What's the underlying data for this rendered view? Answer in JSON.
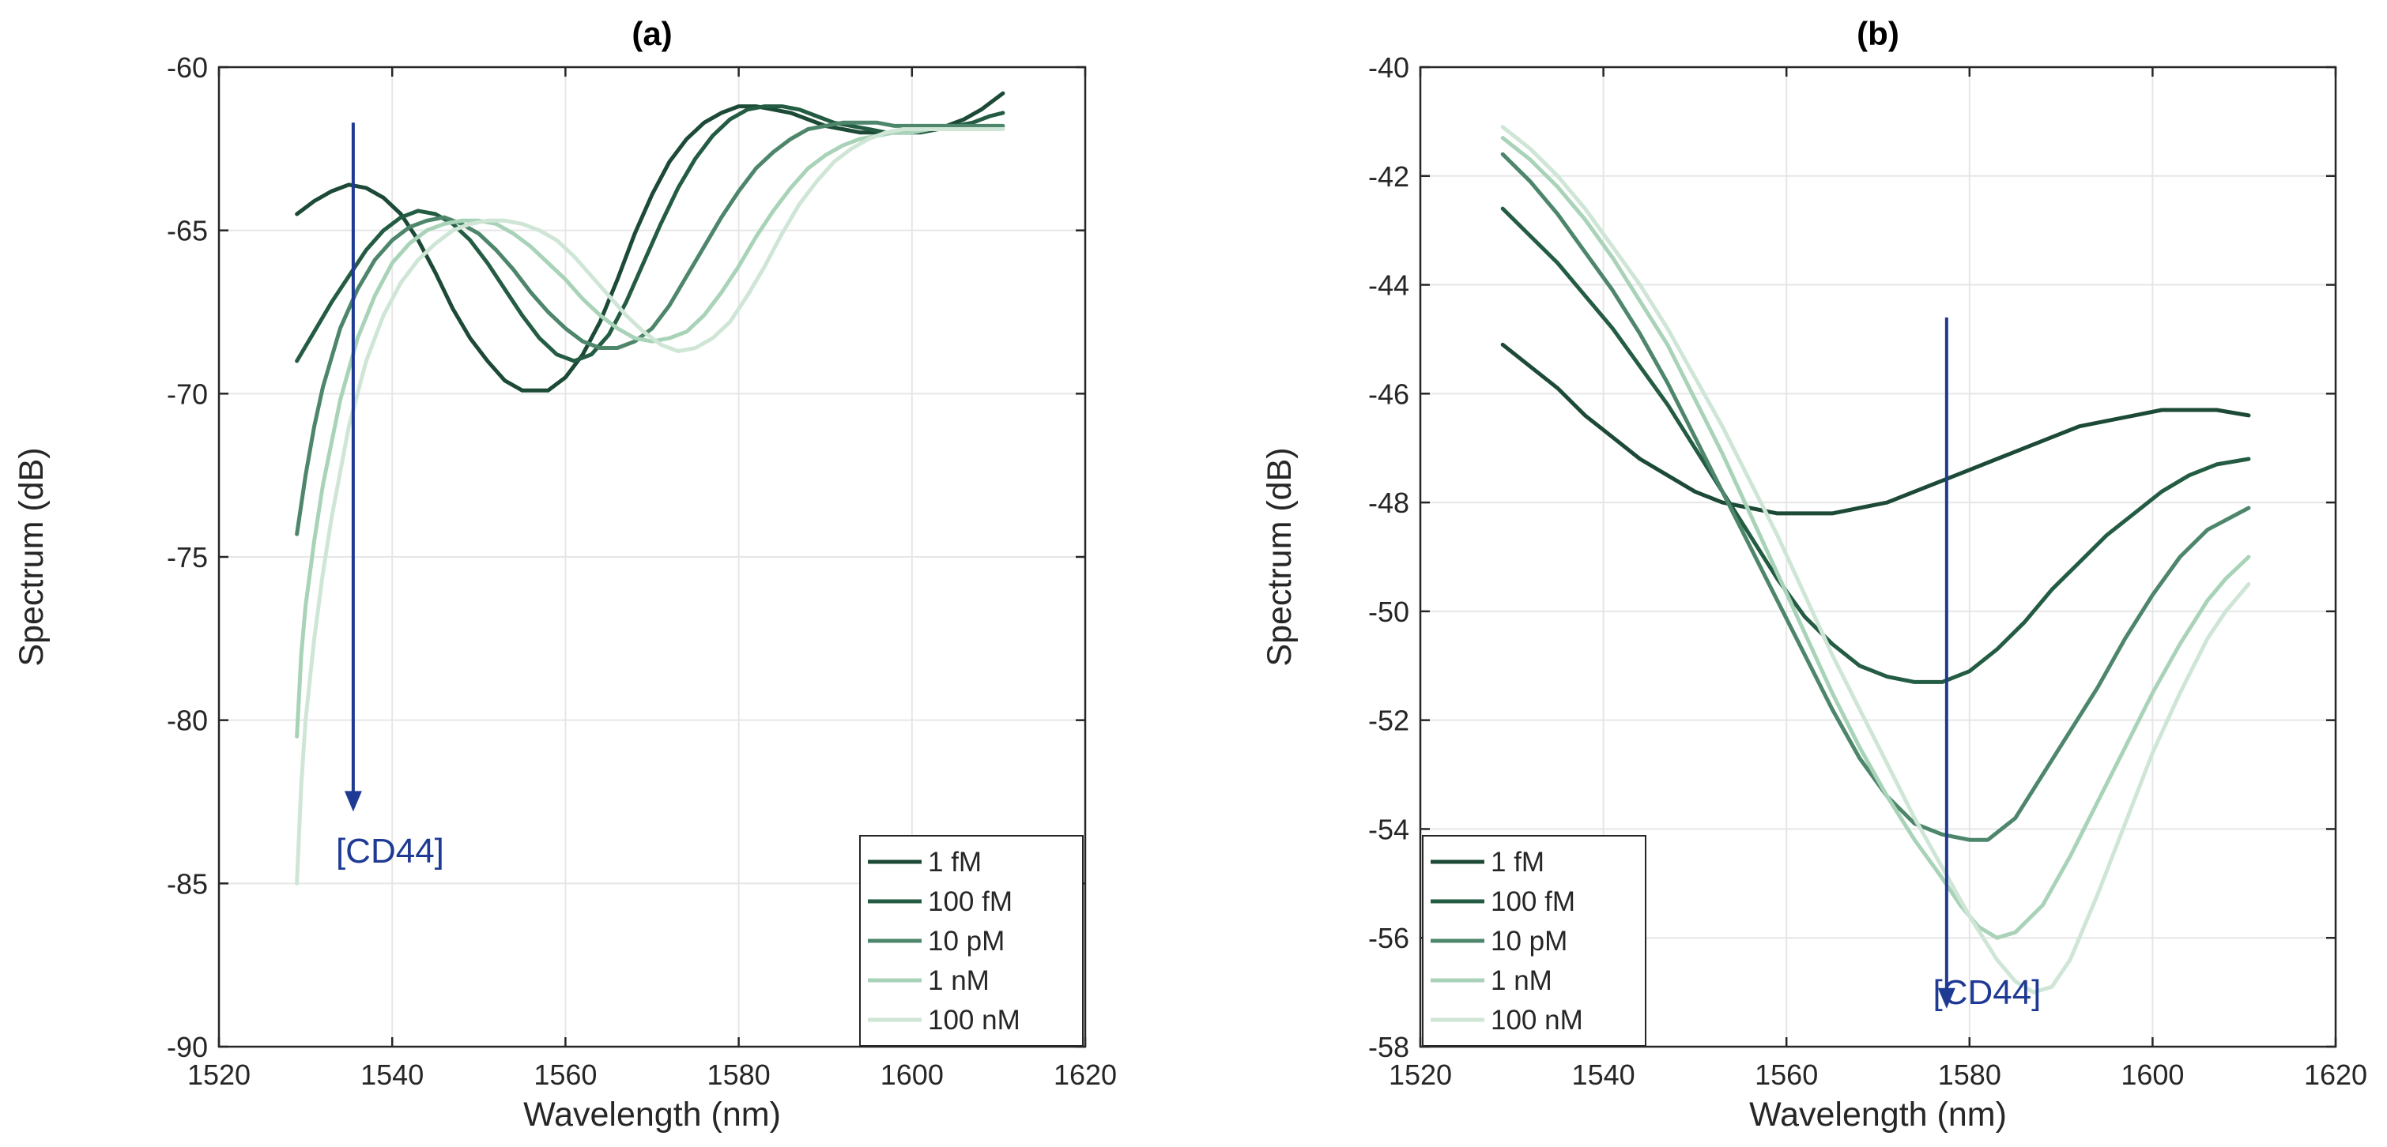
{
  "colors": {
    "series": [
      "#1c4a37",
      "#235c43",
      "#4d866b",
      "#a9d3b8",
      "#cfe6d6"
    ],
    "arrow": "#1f3a93",
    "grid": "#e6e6e6",
    "axis": "#262626"
  },
  "chart_data": [
    {
      "type": "line",
      "title": "(a)",
      "xlabel": "Wavelength (nm)",
      "ylabel": "Spectrum (dB)",
      "xlim": [
        1520,
        1620
      ],
      "ylim": [
        -90,
        -60
      ],
      "xticks": [
        1520,
        1540,
        1560,
        1580,
        1600,
        1620
      ],
      "yticks": [
        -90,
        -85,
        -80,
        -75,
        -70,
        -65,
        -60
      ],
      "grid": true,
      "legend_position": "bottom-right",
      "series": [
        {
          "name": "1 fM",
          "x": [
            1529,
            1531,
            1533,
            1535,
            1537,
            1539,
            1541,
            1543,
            1545,
            1547,
            1549,
            1551,
            1553,
            1555,
            1557,
            1558,
            1560,
            1562,
            1564,
            1566,
            1568,
            1570,
            1572,
            1574,
            1576,
            1578,
            1580,
            1582,
            1584,
            1586,
            1588,
            1590,
            1592,
            1594,
            1596,
            1598,
            1600,
            1602,
            1604,
            1606,
            1608,
            1610.5
          ],
          "y": [
            -64.5,
            -64.1,
            -63.8,
            -63.6,
            -63.7,
            -64.0,
            -64.5,
            -65.3,
            -66.3,
            -67.4,
            -68.3,
            -69.0,
            -69.6,
            -69.9,
            -69.9,
            -69.9,
            -69.5,
            -68.8,
            -67.8,
            -66.5,
            -65.1,
            -63.9,
            -62.9,
            -62.2,
            -61.7,
            -61.4,
            -61.2,
            -61.2,
            -61.3,
            -61.4,
            -61.6,
            -61.8,
            -61.9,
            -62.0,
            -62.0,
            -62.0,
            -62.0,
            -61.9,
            -61.8,
            -61.6,
            -61.3,
            -60.8
          ]
        },
        {
          "name": "100 fM",
          "x": [
            1529,
            1531,
            1533,
            1535,
            1537,
            1539,
            1541,
            1543,
            1545,
            1547,
            1549,
            1551,
            1553,
            1555,
            1557,
            1559,
            1561,
            1563,
            1565,
            1567,
            1569,
            1571,
            1573,
            1575,
            1577,
            1579,
            1581,
            1583,
            1585,
            1587,
            1589,
            1591,
            1593,
            1595,
            1597,
            1599,
            1601,
            1603,
            1605,
            1607,
            1609,
            1610.5
          ],
          "y": [
            -69.0,
            -68.1,
            -67.2,
            -66.4,
            -65.6,
            -65.0,
            -64.6,
            -64.4,
            -64.5,
            -64.8,
            -65.3,
            -66.0,
            -66.8,
            -67.6,
            -68.3,
            -68.8,
            -69.0,
            -68.8,
            -68.2,
            -67.2,
            -66.0,
            -64.8,
            -63.7,
            -62.8,
            -62.1,
            -61.6,
            -61.3,
            -61.2,
            -61.2,
            -61.3,
            -61.5,
            -61.7,
            -61.8,
            -61.9,
            -62.0,
            -62.0,
            -62.0,
            -61.9,
            -61.8,
            -61.7,
            -61.5,
            -61.4
          ]
        },
        {
          "name": "10 pM",
          "x": [
            1529,
            1530,
            1531,
            1532,
            1534,
            1536,
            1538,
            1540,
            1542,
            1544,
            1546,
            1548,
            1550,
            1552,
            1554,
            1556,
            1558,
            1560,
            1562,
            1564,
            1566,
            1568,
            1570,
            1572,
            1574,
            1576,
            1578,
            1580,
            1582,
            1584,
            1586,
            1588,
            1590,
            1592,
            1594,
            1596,
            1598,
            1600,
            1602,
            1604,
            1606,
            1610.5
          ],
          "y": [
            -74.3,
            -72.5,
            -71.0,
            -69.8,
            -68.0,
            -66.8,
            -65.9,
            -65.3,
            -64.9,
            -64.7,
            -64.6,
            -64.8,
            -65.1,
            -65.6,
            -66.2,
            -66.9,
            -67.5,
            -68.0,
            -68.4,
            -68.6,
            -68.6,
            -68.4,
            -68.0,
            -67.3,
            -66.4,
            -65.5,
            -64.6,
            -63.8,
            -63.1,
            -62.6,
            -62.2,
            -61.9,
            -61.8,
            -61.7,
            -61.7,
            -61.7,
            -61.8,
            -61.8,
            -61.8,
            -61.8,
            -61.8,
            -61.8
          ]
        },
        {
          "name": "1 nM",
          "x": [
            1529,
            1529.5,
            1530,
            1531,
            1532,
            1534,
            1536,
            1538,
            1540,
            1542,
            1544,
            1546,
            1548,
            1550,
            1552,
            1554,
            1556,
            1558,
            1560,
            1562,
            1564,
            1566,
            1568,
            1570,
            1572,
            1574,
            1576,
            1578,
            1580,
            1582,
            1584,
            1586,
            1588,
            1590,
            1592,
            1594,
            1596,
            1598,
            1600,
            1602,
            1604,
            1610.5
          ],
          "y": [
            -80.5,
            -78.0,
            -76.5,
            -74.5,
            -72.8,
            -70.2,
            -68.3,
            -67.0,
            -66.0,
            -65.4,
            -65.0,
            -64.8,
            -64.7,
            -64.7,
            -64.8,
            -65.1,
            -65.5,
            -66.0,
            -66.5,
            -67.1,
            -67.6,
            -68.0,
            -68.3,
            -68.4,
            -68.3,
            -68.1,
            -67.6,
            -66.9,
            -66.1,
            -65.2,
            -64.4,
            -63.7,
            -63.1,
            -62.7,
            -62.4,
            -62.2,
            -62.1,
            -62.0,
            -62.0,
            -61.9,
            -61.9,
            -61.9
          ]
        },
        {
          "name": "100 nM",
          "x": [
            1529,
            1529.5,
            1530,
            1531,
            1532,
            1533,
            1535,
            1537,
            1539,
            1541,
            1543,
            1545,
            1547,
            1549,
            1551,
            1553,
            1555,
            1557,
            1559,
            1561,
            1563,
            1565,
            1567,
            1569,
            1571,
            1573,
            1575,
            1577,
            1579,
            1581,
            1583,
            1585,
            1587,
            1589,
            1591,
            1593,
            1595,
            1597,
            1599,
            1601,
            1603,
            1610.5
          ],
          "y": [
            -85.0,
            -82.0,
            -80.0,
            -77.5,
            -75.5,
            -73.8,
            -71.0,
            -69.0,
            -67.6,
            -66.6,
            -65.9,
            -65.4,
            -65.0,
            -64.8,
            -64.7,
            -64.7,
            -64.8,
            -65.0,
            -65.3,
            -65.8,
            -66.4,
            -67.0,
            -67.6,
            -68.1,
            -68.5,
            -68.7,
            -68.6,
            -68.3,
            -67.8,
            -67.0,
            -66.1,
            -65.1,
            -64.2,
            -63.5,
            -62.9,
            -62.5,
            -62.2,
            -62.0,
            -61.9,
            -61.9,
            -61.9,
            -61.9
          ]
        }
      ],
      "annotation": {
        "label": "[CD44]",
        "arrow_x": 1535.5,
        "arrow_y_start": -61.7,
        "arrow_y_end": -82.8,
        "text_x": 1533.5,
        "text_y": -84.0
      }
    },
    {
      "type": "line",
      "title": "(b)",
      "xlabel": "Wavelength (nm)",
      "ylabel": "Spectrum (dB)",
      "xlim": [
        1520,
        1620
      ],
      "ylim": [
        -58,
        -40
      ],
      "xticks": [
        1520,
        1540,
        1560,
        1580,
        1600,
        1620
      ],
      "yticks": [
        -58,
        -56,
        -54,
        -52,
        -50,
        -48,
        -46,
        -44,
        -42,
        -40
      ],
      "grid": true,
      "legend_position": "bottom-left",
      "series": [
        {
          "name": "1 fM",
          "x": [
            1529,
            1532,
            1535,
            1538,
            1541,
            1544,
            1547,
            1550,
            1553,
            1556,
            1559,
            1562,
            1565,
            1568,
            1571,
            1574,
            1577,
            1580,
            1583,
            1586,
            1589,
            1592,
            1595,
            1598,
            1601,
            1604,
            1607,
            1610.5
          ],
          "y": [
            -45.1,
            -45.5,
            -45.9,
            -46.4,
            -46.8,
            -47.2,
            -47.5,
            -47.8,
            -48.0,
            -48.1,
            -48.2,
            -48.2,
            -48.2,
            -48.1,
            -48.0,
            -47.8,
            -47.6,
            -47.4,
            -47.2,
            -47.0,
            -46.8,
            -46.6,
            -46.5,
            -46.4,
            -46.3,
            -46.3,
            -46.3,
            -46.4
          ]
        },
        {
          "name": "100 fM",
          "x": [
            1529,
            1532,
            1535,
            1538,
            1541,
            1544,
            1547,
            1550,
            1553,
            1556,
            1559,
            1562,
            1565,
            1568,
            1571,
            1574,
            1577,
            1580,
            1583,
            1586,
            1589,
            1592,
            1595,
            1598,
            1601,
            1604,
            1607,
            1610.5
          ],
          "y": [
            -42.6,
            -43.1,
            -43.6,
            -44.2,
            -44.8,
            -45.5,
            -46.2,
            -47.0,
            -47.8,
            -48.6,
            -49.4,
            -50.1,
            -50.6,
            -51.0,
            -51.2,
            -51.3,
            -51.3,
            -51.1,
            -50.7,
            -50.2,
            -49.6,
            -49.1,
            -48.6,
            -48.2,
            -47.8,
            -47.5,
            -47.3,
            -47.2
          ]
        },
        {
          "name": "10 pM",
          "x": [
            1529,
            1532,
            1535,
            1538,
            1541,
            1544,
            1547,
            1550,
            1553,
            1556,
            1559,
            1562,
            1565,
            1568,
            1571,
            1574,
            1577,
            1580,
            1582,
            1585,
            1588,
            1591,
            1594,
            1597,
            1600,
            1603,
            1606,
            1610.5
          ],
          "y": [
            -41.6,
            -42.1,
            -42.7,
            -43.4,
            -44.1,
            -44.9,
            -45.8,
            -46.8,
            -47.8,
            -48.8,
            -49.8,
            -50.8,
            -51.8,
            -52.7,
            -53.4,
            -53.9,
            -54.1,
            -54.2,
            -54.2,
            -53.8,
            -53.0,
            -52.2,
            -51.4,
            -50.5,
            -49.7,
            -49.0,
            -48.5,
            -48.1
          ]
        },
        {
          "name": "1 nM",
          "x": [
            1529,
            1532,
            1535,
            1538,
            1541,
            1544,
            1547,
            1550,
            1553,
            1556,
            1559,
            1562,
            1565,
            1568,
            1571,
            1574,
            1577,
            1579,
            1581,
            1583,
            1585,
            1588,
            1591,
            1594,
            1597,
            1600,
            1603,
            1606,
            1608,
            1610.5
          ],
          "y": [
            -41.3,
            -41.7,
            -42.2,
            -42.8,
            -43.5,
            -44.3,
            -45.1,
            -46.1,
            -47.1,
            -48.2,
            -49.3,
            -50.4,
            -51.5,
            -52.5,
            -53.4,
            -54.2,
            -54.9,
            -55.4,
            -55.8,
            -56.0,
            -55.9,
            -55.4,
            -54.5,
            -53.5,
            -52.5,
            -51.5,
            -50.6,
            -49.8,
            -49.4,
            -49.0
          ]
        },
        {
          "name": "100 nM",
          "x": [
            1529,
            1532,
            1535,
            1538,
            1541,
            1544,
            1547,
            1550,
            1553,
            1556,
            1559,
            1562,
            1565,
            1568,
            1571,
            1574,
            1577,
            1580,
            1583,
            1585,
            1587,
            1589,
            1591,
            1594,
            1597,
            1600,
            1603,
            1606,
            1608,
            1610.5
          ],
          "y": [
            -41.1,
            -41.5,
            -42.0,
            -42.6,
            -43.3,
            -44.0,
            -44.8,
            -45.7,
            -46.6,
            -47.6,
            -48.6,
            -49.7,
            -50.8,
            -51.8,
            -52.8,
            -53.8,
            -54.7,
            -55.6,
            -56.4,
            -56.8,
            -57.0,
            -56.9,
            -56.4,
            -55.2,
            -53.9,
            -52.6,
            -51.5,
            -50.5,
            -50.0,
            -49.5
          ]
        }
      ],
      "annotation": {
        "label": "[CD44]",
        "arrow_x": 1577.5,
        "arrow_y_start": -44.6,
        "arrow_y_end": -57.3,
        "text_x": 1576,
        "text_y": -57.0
      }
    }
  ]
}
